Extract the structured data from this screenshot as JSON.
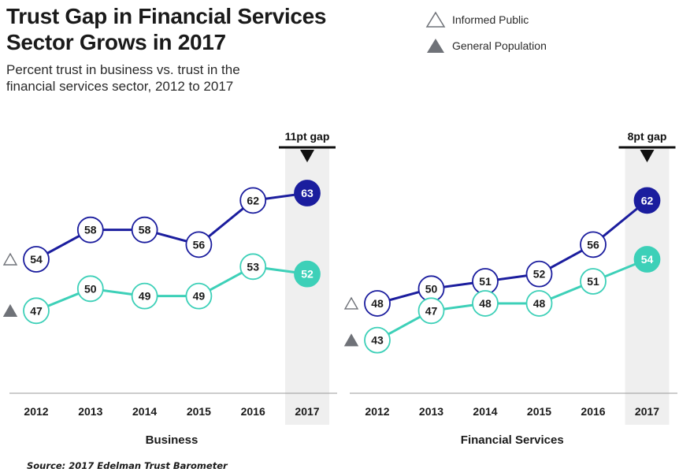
{
  "header": {
    "title_line1": "Trust Gap in Financial Services",
    "title_line2": "Sector Grows in 2017",
    "subtitle_line1": "Percent trust in business vs. trust in the",
    "subtitle_line2": "financial services sector, 2012 to 2017"
  },
  "legend": {
    "informed_public": "Informed Public",
    "general_population": "General Population"
  },
  "source": "Source: 2017 Edelman Trust Barometer",
  "colors": {
    "informed": "#1b1d9e",
    "general": "#3dd0b8",
    "highlight_band": "#efefef",
    "marker_icon": "#6f7278"
  },
  "chart_data": [
    {
      "type": "line",
      "title": "Business",
      "categories": [
        "2012",
        "2013",
        "2014",
        "2015",
        "2016",
        "2017"
      ],
      "series": [
        {
          "name": "Informed Public",
          "values": [
            54,
            58,
            58,
            56,
            62,
            63
          ]
        },
        {
          "name": "General Population",
          "values": [
            47,
            50,
            49,
            49,
            53,
            52
          ]
        }
      ],
      "ylim": [
        30,
        72
      ],
      "highlight_category": "2017",
      "annotation": "11pt gap"
    },
    {
      "type": "line",
      "title": "Financial Services",
      "categories": [
        "2012",
        "2013",
        "2014",
        "2015",
        "2016",
        "2017"
      ],
      "series": [
        {
          "name": "Informed Public",
          "values": [
            48,
            50,
            51,
            52,
            56,
            62
          ]
        },
        {
          "name": "General Population",
          "values": [
            43,
            47,
            48,
            48,
            51,
            54
          ]
        }
      ],
      "ylim": [
        30,
        72
      ],
      "highlight_category": "2017",
      "annotation": "8pt gap"
    }
  ]
}
